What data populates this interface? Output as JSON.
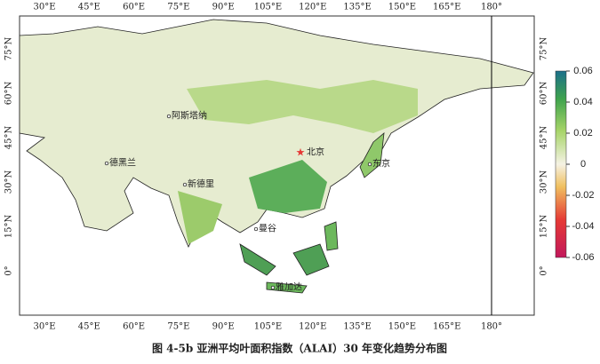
{
  "map": {
    "lon_labels": [
      "30°E",
      "45°E",
      "60°E",
      "75°E",
      "90°E",
      "105°E",
      "120°E",
      "135°E",
      "150°E",
      "165°E",
      "180°"
    ],
    "lat_labels": [
      "75°N",
      "60°N",
      "45°N",
      "30°N",
      "15°N",
      "0°"
    ],
    "cities": [
      {
        "name": "阿斯塔纳"
      },
      {
        "name": "德黑兰"
      },
      {
        "name": "新德里"
      },
      {
        "name": "北京"
      },
      {
        "name": "东京"
      },
      {
        "name": "曼谷"
      },
      {
        "name": "雅加达"
      }
    ],
    "colorbar": {
      "lim": [
        -0.06,
        0.06
      ],
      "ticks": [
        0.06,
        0.04,
        0.02,
        0,
        -0.02,
        -0.04,
        -0.06
      ]
    },
    "caption": "图 4-5b 亚洲平均叶面积指数（ALAI）30 年变化趋势分布图"
  }
}
